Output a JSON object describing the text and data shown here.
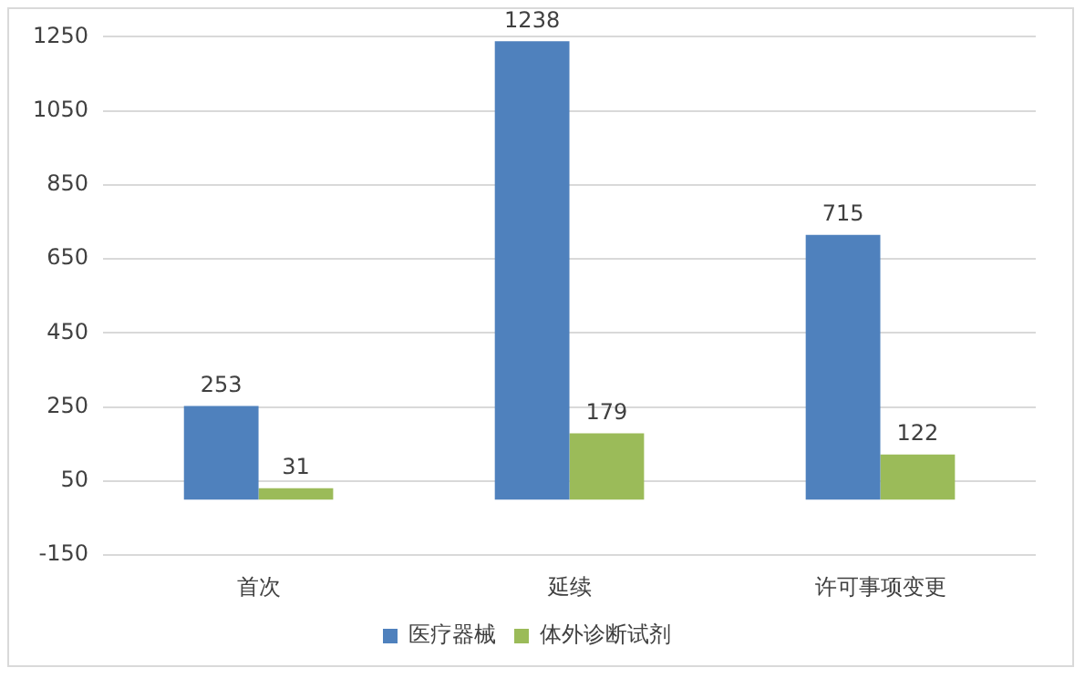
{
  "chart_data": {
    "type": "bar",
    "categories": [
      "首次",
      "延续",
      "许可事项变更"
    ],
    "series": [
      {
        "name": "医疗器械",
        "color": "#4f81bd",
        "values": [
          253,
          1238,
          715
        ]
      },
      {
        "name": "体外诊断试剂",
        "color": "#9bbb59",
        "values": [
          31,
          179,
          122
        ]
      }
    ],
    "ylim": [
      -150,
      1250
    ],
    "yticks": [
      -150,
      50,
      250,
      450,
      650,
      850,
      1050,
      1250
    ],
    "grid": "y",
    "legend": "bottom",
    "data_labels": true
  }
}
